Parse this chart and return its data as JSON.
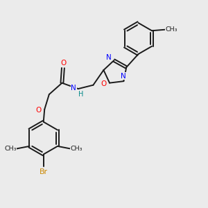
{
  "bg_color": "#ebebeb",
  "bond_color": "#1a1a1a",
  "N_color": "#0000ff",
  "O_color": "#ff0000",
  "Br_color": "#cc8800",
  "NH_color": "#008888",
  "figsize": [
    3.0,
    3.0
  ],
  "dpi": 100,
  "xlim": [
    0,
    10
  ],
  "ylim": [
    0,
    10
  ]
}
